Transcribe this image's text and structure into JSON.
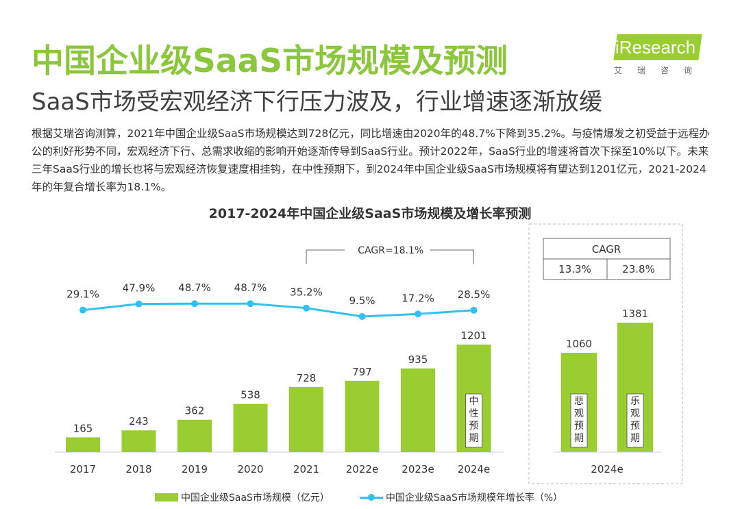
{
  "header": {
    "title": "中国企业级SaaS市场规模及预测",
    "subtitle": "SaaS市场受宏观经济下行压力波及，行业增速逐渐放缓",
    "logo_text": "iResearch",
    "logo_sub": "艾瑞咨询",
    "brand_color": "#8cc63f"
  },
  "description": "根据艾瑞咨询测算，2021年中国企业级SaaS市场规模达到728亿元，同比增速由2020年的48.7%下降到35.2%。与疫情爆发之初受益于远程办公的利好形势不同，宏观经济下行、总需求收缩的影响开始逐渐传导到SaaS行业。预计2022年，SaaS行业的增速将首次下探至10%以下。未来三年SaaS行业的增长也将与宏观经济恢复速度相挂钩，在中性预期下，到2024年中国企业级SaaS市场规模将有望达到1201亿元，2021-2024年的年复合增长率为18.1%。",
  "chart_data": {
    "type": "bar",
    "title": "2017-2024年中国企业级SaaS市场规模及增长率预测",
    "categories": [
      "2017",
      "2018",
      "2019",
      "2020",
      "2021",
      "2022e",
      "2023e",
      "2024e"
    ],
    "series": [
      {
        "name": "中国企业级SaaS市场规模（亿元）",
        "type": "bar",
        "values": [
          165,
          243,
          362,
          538,
          728,
          797,
          935,
          1201
        ],
        "color": "#9acd32"
      },
      {
        "name": "中国企业级SaaS市场规模年增长率（%）",
        "type": "line",
        "values": [
          29.1,
          47.9,
          48.7,
          48.7,
          35.2,
          9.5,
          17.2,
          28.5
        ],
        "labels": [
          "29.1%",
          "47.9%",
          "48.7%",
          "48.7%",
          "35.2%",
          "9.5%",
          "17.2%",
          "28.5%"
        ],
        "color": "#33c0ee"
      }
    ],
    "bar_annotation": "中性预期",
    "cagr_label": "CAGR=18.1%",
    "scenarios": {
      "category": "2024e",
      "cagr_header": "CAGR",
      "items": [
        {
          "label": "悲观预期",
          "value": 1060,
          "cagr": "13.3%"
        },
        {
          "label": "乐观预期",
          "value": 1381,
          "cagr": "23.8%"
        }
      ]
    },
    "legend_position": "bottom"
  }
}
